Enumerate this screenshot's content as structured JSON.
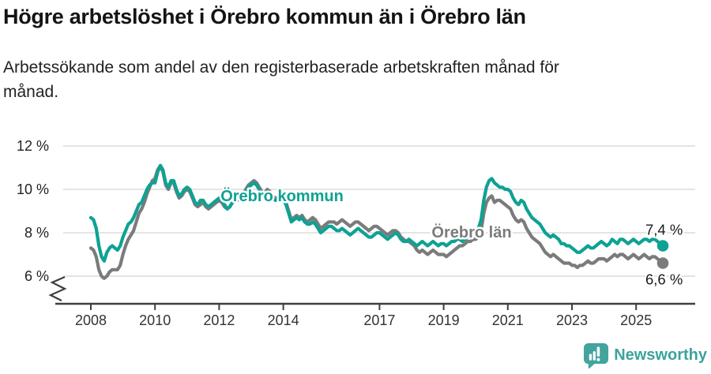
{
  "chart_data": {
    "type": "line",
    "title": "Högre arbetslöshet i Örebro kommun än i Örebro län",
    "subtitle": "Arbetssökande som andel av den registerbaserade arbetskraften månad för månad.",
    "frequency": "monthly",
    "x_start": "2008-01",
    "x_end": "2025-11",
    "x_tick_years": [
      2008,
      2010,
      2012,
      2014,
      2017,
      2019,
      2021,
      2023,
      2025
    ],
    "y_ticks": [
      {
        "value": 12,
        "label": "12 %"
      },
      {
        "value": 10,
        "label": "10 %"
      },
      {
        "value": 8,
        "label": "8 %"
      },
      {
        "value": 6,
        "label": "6 %"
      }
    ],
    "ylim": [
      5.5,
      12.3
    ],
    "grid": true,
    "axis_break": true,
    "legend_position": "inline-labels",
    "colors": {
      "kommun": "#0EA293",
      "lan": "#7B7B7B",
      "axis": "#3F3F3F",
      "gridline": "#DBDBDB",
      "tick_text": "#333333",
      "value_text": "#1A1A1A"
    },
    "series": [
      {
        "name": "Örebro län",
        "key": "lan",
        "end_label": "6,6 %",
        "label_hint": {
          "x": 597,
          "y": 301
        },
        "values": [
          7.3,
          7.2,
          6.9,
          6.3,
          6.0,
          5.9,
          6.0,
          6.2,
          6.3,
          6.3,
          6.3,
          6.5,
          7.0,
          7.4,
          7.7,
          7.9,
          8.1,
          8.5,
          8.9,
          9.1,
          9.4,
          9.8,
          10.1,
          10.4,
          10.5,
          10.9,
          11.1,
          10.8,
          10.2,
          10.0,
          10.3,
          10.3,
          9.9,
          9.6,
          9.7,
          9.9,
          10.0,
          9.9,
          9.6,
          9.3,
          9.2,
          9.3,
          9.4,
          9.2,
          9.1,
          9.2,
          9.3,
          9.4,
          9.5,
          9.4,
          9.2,
          9.1,
          9.2,
          9.4,
          9.6,
          9.6,
          9.7,
          9.8,
          10.0,
          10.2,
          10.3,
          10.4,
          10.3,
          10.1,
          9.9,
          9.8,
          10.0,
          9.9,
          9.7,
          9.6,
          9.6,
          9.7,
          9.6,
          9.4,
          9.0,
          8.6,
          8.7,
          8.8,
          8.7,
          8.8,
          8.6,
          8.5,
          8.6,
          8.7,
          8.6,
          8.4,
          8.2,
          8.3,
          8.4,
          8.5,
          8.5,
          8.5,
          8.4,
          8.5,
          8.6,
          8.5,
          8.4,
          8.3,
          8.4,
          8.5,
          8.5,
          8.4,
          8.3,
          8.2,
          8.1,
          8.2,
          8.3,
          8.3,
          8.2,
          8.1,
          8.0,
          7.9,
          8.0,
          8.1,
          8.1,
          8.0,
          7.8,
          7.7,
          7.6,
          7.6,
          7.5,
          7.4,
          7.2,
          7.1,
          7.2,
          7.1,
          7.0,
          7.1,
          7.2,
          7.1,
          7.0,
          7.0,
          7.0,
          6.9,
          7.0,
          7.1,
          7.2,
          7.3,
          7.4,
          7.4,
          7.5,
          7.6,
          7.6,
          7.7,
          7.7,
          7.8,
          8.1,
          8.9,
          9.4,
          9.6,
          9.7,
          9.4,
          9.5,
          9.5,
          9.4,
          9.3,
          9.2,
          9.1,
          8.8,
          8.6,
          8.5,
          8.6,
          8.5,
          8.2,
          8.0,
          7.8,
          7.7,
          7.6,
          7.5,
          7.3,
          7.1,
          7.0,
          6.9,
          7.0,
          6.9,
          6.8,
          6.7,
          6.6,
          6.6,
          6.6,
          6.5,
          6.5,
          6.4,
          6.5,
          6.5,
          6.6,
          6.7,
          6.6,
          6.6,
          6.7,
          6.8,
          6.8,
          6.8,
          6.7,
          6.8,
          6.9,
          7.0,
          6.9,
          7.0,
          7.0,
          6.9,
          6.8,
          6.9,
          7.0,
          6.9,
          6.8,
          6.9,
          7.0,
          6.9,
          6.8,
          6.9,
          6.9,
          6.8,
          6.7,
          6.6
        ]
      },
      {
        "name": "Örebro kommun",
        "key": "kommun",
        "end_label": "7,4 %",
        "label_hint": {
          "x": 357,
          "y": 255
        },
        "values": [
          8.7,
          8.6,
          8.2,
          7.4,
          6.9,
          6.7,
          7.1,
          7.3,
          7.4,
          7.3,
          7.2,
          7.4,
          7.8,
          8.1,
          8.4,
          8.5,
          8.7,
          9.0,
          9.3,
          9.4,
          9.7,
          10.0,
          10.2,
          10.3,
          10.3,
          10.8,
          11.1,
          10.9,
          10.3,
          10.1,
          10.4,
          10.4,
          10.0,
          9.7,
          9.8,
          10.0,
          10.1,
          10.0,
          9.7,
          9.4,
          9.3,
          9.5,
          9.5,
          9.3,
          9.2,
          9.3,
          9.4,
          9.5,
          9.6,
          9.5,
          9.3,
          9.1,
          9.2,
          9.4,
          9.6,
          9.5,
          9.6,
          9.7,
          9.9,
          10.1,
          10.2,
          10.3,
          10.2,
          10.0,
          9.8,
          9.7,
          9.9,
          9.8,
          9.6,
          9.5,
          9.5,
          9.6,
          9.5,
          9.3,
          8.9,
          8.5,
          8.6,
          8.7,
          8.6,
          8.7,
          8.5,
          8.4,
          8.4,
          8.5,
          8.4,
          8.2,
          8.0,
          8.1,
          8.2,
          8.3,
          8.3,
          8.2,
          8.1,
          8.1,
          8.2,
          8.1,
          8.0,
          7.9,
          8.0,
          8.1,
          8.2,
          8.1,
          8.0,
          7.9,
          7.8,
          7.8,
          7.9,
          8.0,
          8.0,
          7.9,
          7.8,
          7.7,
          7.8,
          7.9,
          8.0,
          7.9,
          7.7,
          7.6,
          7.6,
          7.7,
          7.6,
          7.5,
          7.4,
          7.5,
          7.6,
          7.5,
          7.4,
          7.5,
          7.6,
          7.5,
          7.4,
          7.5,
          7.5,
          7.4,
          7.5,
          7.6,
          7.6,
          7.7,
          7.7,
          7.6,
          7.7,
          7.8,
          7.9,
          8.0,
          8.1,
          8.2,
          8.6,
          9.5,
          10.1,
          10.4,
          10.5,
          10.3,
          10.2,
          10.1,
          10.1,
          10.0,
          10.0,
          9.9,
          9.6,
          9.4,
          9.3,
          9.5,
          9.4,
          9.1,
          8.9,
          8.7,
          8.6,
          8.5,
          8.4,
          8.2,
          8.0,
          7.9,
          7.8,
          7.9,
          7.8,
          7.7,
          7.5,
          7.5,
          7.4,
          7.4,
          7.3,
          7.2,
          7.1,
          7.1,
          7.2,
          7.3,
          7.4,
          7.3,
          7.3,
          7.4,
          7.5,
          7.6,
          7.5,
          7.4,
          7.5,
          7.7,
          7.6,
          7.5,
          7.7,
          7.7,
          7.6,
          7.5,
          7.6,
          7.7,
          7.6,
          7.5,
          7.6,
          7.7,
          7.7,
          7.6,
          7.7,
          7.7,
          7.6,
          7.5,
          7.4
        ]
      }
    ]
  },
  "footer": {
    "brand": "Newsworthy",
    "brand_color": "#3BA39D",
    "icon_color": "#43A49E"
  }
}
